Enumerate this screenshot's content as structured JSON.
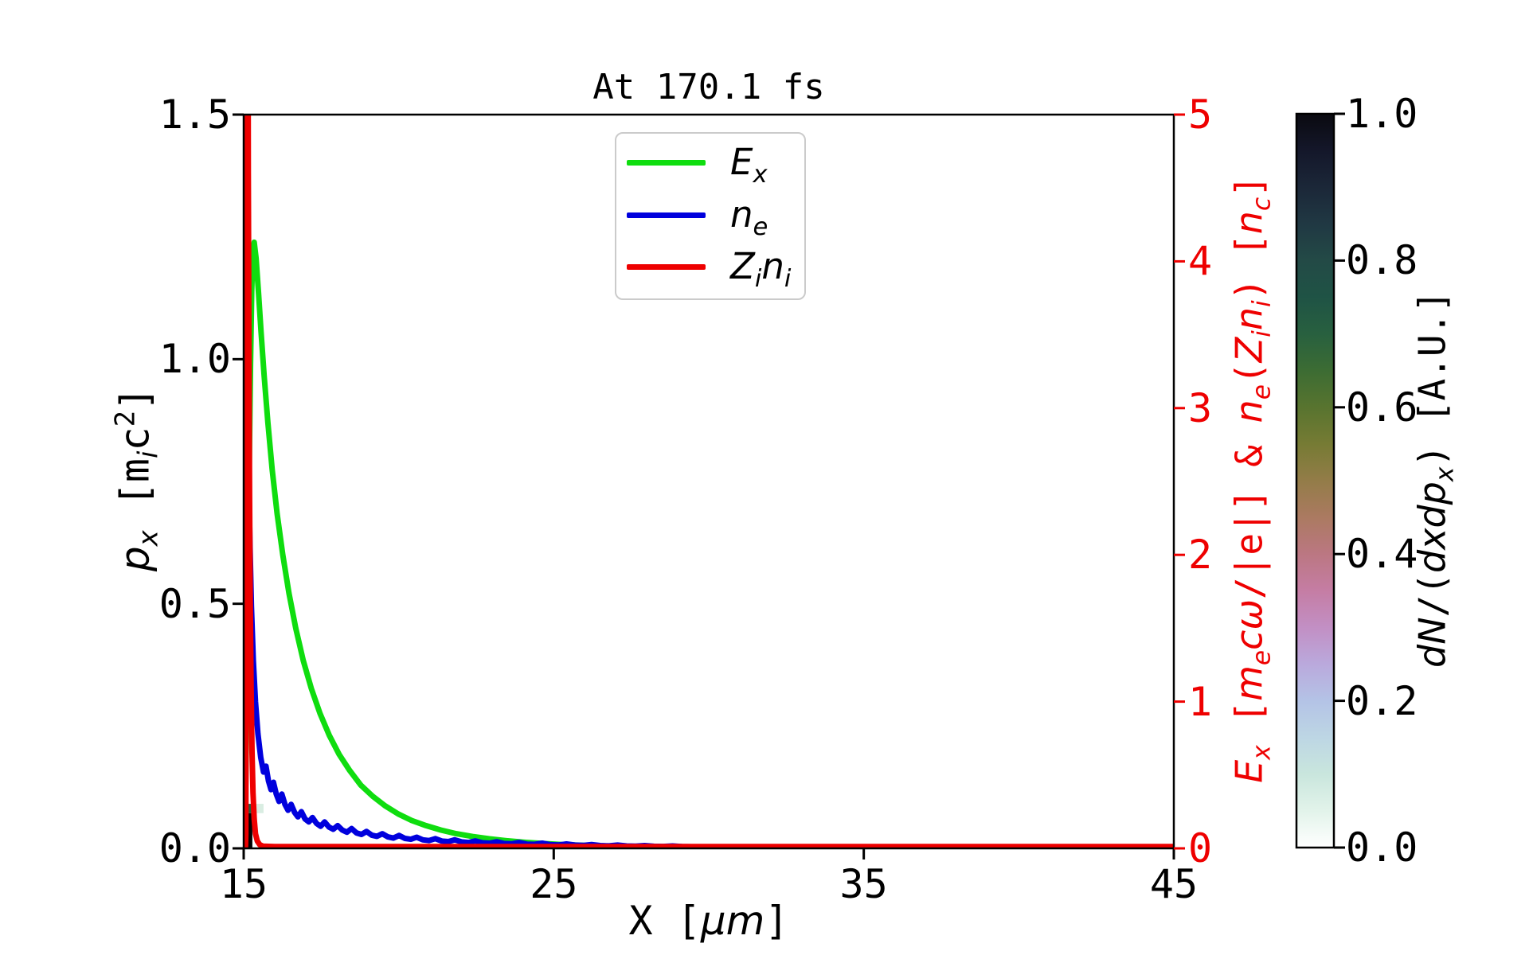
{
  "figure": {
    "title": "At 170.1 fs",
    "background": "#ffffff"
  },
  "axes": {
    "x": {
      "label_html": "X [<i>μm</i>]",
      "label_text": "X [μm]",
      "ticks": [
        "15",
        "25",
        "35",
        "45"
      ],
      "range": [
        15,
        45
      ],
      "color": "#000000"
    },
    "y_left": {
      "label_html": "<i>p<sub>x</sub></i> [m<sub><i>i</i></sub>c<sup>2</sup>]",
      "label_text": "p_x [m_i c^2]",
      "ticks": [
        "0.0",
        "0.5",
        "1.0",
        "1.5"
      ],
      "range": [
        0,
        1.5
      ],
      "color": "#000000"
    },
    "y_right": {
      "label_html": "<i>E<sub>x</sub></i> [<i>m<sub>e</sub>cω</i>/|e|] &amp; <i>n<sub>e</sub></i>(<i>Z<sub>i</sub>n<sub>i</sub></i>) [<i>n<sub>c</sub></i>]",
      "label_text": "E_x [m_e cω/|e|] & n_e(Z_i n_i) [n_c]",
      "ticks": [
        "0",
        "1",
        "2",
        "3",
        "4",
        "5"
      ],
      "range": [
        0,
        5
      ],
      "color": "#ee0000"
    }
  },
  "colorbar": {
    "label_html": "<i>dN</i>/(<i>dxdp<sub>x</sub></i>) [A.U.]",
    "label_text": "dN/(dxdp_x) [A.U.]",
    "ticks": [
      "0.0",
      "0.2",
      "0.4",
      "0.6",
      "0.8",
      "1.0"
    ],
    "range": [
      0,
      1
    ],
    "colormap": "cubehelix_r",
    "stops": [
      [
        0.0,
        "#ffffff"
      ],
      [
        0.05,
        "#e2f3ea"
      ],
      [
        0.1,
        "#c9e6dd"
      ],
      [
        0.15,
        "#bdd6e4"
      ],
      [
        0.2,
        "#b4c3e6"
      ],
      [
        0.25,
        "#baa9dc"
      ],
      [
        0.3,
        "#c28fc4"
      ],
      [
        0.35,
        "#c57da4"
      ],
      [
        0.4,
        "#bb7782"
      ],
      [
        0.45,
        "#ab7a61"
      ],
      [
        0.5,
        "#937c48"
      ],
      [
        0.55,
        "#767b34"
      ],
      [
        0.6,
        "#58742f"
      ],
      [
        0.65,
        "#3c6c33"
      ],
      [
        0.7,
        "#28603f"
      ],
      [
        0.75,
        "#1f5345"
      ],
      [
        0.8,
        "#234a46"
      ],
      [
        0.85,
        "#203843"
      ],
      [
        0.9,
        "#1b2738"
      ],
      [
        0.95,
        "#14172a"
      ],
      [
        1.0,
        "#0a0a10"
      ]
    ]
  },
  "legend": {
    "items": [
      {
        "label_html": "<i>E<sub>x</sub></i>",
        "label_text": "E_x",
        "color": "#0fdd0f"
      },
      {
        "label_html": "<i>n<sub>e</sub></i>",
        "label_text": "n_e",
        "color": "#0000dd"
      },
      {
        "label_html": "<i>Z<sub>i</sub>n<sub>i</sub></i>",
        "label_text": "Z_i n_i",
        "color": "#ee0000"
      }
    ]
  },
  "chart_data": {
    "type": "line",
    "title": "At 170.1 fs",
    "xlabel": "X [μm]",
    "xlim": [
      15,
      45
    ],
    "xticks": [
      15,
      25,
      35,
      45
    ],
    "ylabel_left": "p_x [m_i c^2]",
    "ylim_left": [
      0,
      1.5
    ],
    "ylabel_right": "E_x [m_e cω/|e|] & n_e(Z_i n_i) [n_c]",
    "ylim_right": [
      0,
      5
    ],
    "grid": false,
    "legend_position": "upper center inside",
    "series": [
      {
        "name": "E_x",
        "axis": "right",
        "color": "#0fdd0f",
        "width": 7,
        "points": [
          [
            15.0,
            0.02
          ],
          [
            15.06,
            0.35
          ],
          [
            15.1,
            1.0
          ],
          [
            15.14,
            1.8
          ],
          [
            15.18,
            2.6
          ],
          [
            15.22,
            3.3
          ],
          [
            15.26,
            3.8
          ],
          [
            15.3,
            4.08
          ],
          [
            15.34,
            4.13
          ],
          [
            15.4,
            4.02
          ],
          [
            15.48,
            3.78
          ],
          [
            15.56,
            3.52
          ],
          [
            15.66,
            3.22
          ],
          [
            15.78,
            2.9
          ],
          [
            15.92,
            2.58
          ],
          [
            16.08,
            2.28
          ],
          [
            16.26,
            2.0
          ],
          [
            16.46,
            1.74
          ],
          [
            16.68,
            1.5
          ],
          [
            16.92,
            1.28
          ],
          [
            17.18,
            1.09
          ],
          [
            17.46,
            0.92
          ],
          [
            17.76,
            0.77
          ],
          [
            18.08,
            0.64
          ],
          [
            18.42,
            0.53
          ],
          [
            18.78,
            0.43
          ],
          [
            19.16,
            0.355
          ],
          [
            19.56,
            0.29
          ],
          [
            19.98,
            0.235
          ],
          [
            20.42,
            0.19
          ],
          [
            20.88,
            0.155
          ],
          [
            21.36,
            0.125
          ],
          [
            21.86,
            0.1
          ],
          [
            22.38,
            0.081
          ],
          [
            22.92,
            0.065
          ],
          [
            23.48,
            0.052
          ],
          [
            24.06,
            0.042
          ],
          [
            24.66,
            0.033
          ],
          [
            25.28,
            0.026
          ],
          [
            25.92,
            0.021
          ],
          [
            26.58,
            0.016
          ],
          [
            27.26,
            0.013
          ],
          [
            27.96,
            0.01
          ],
          [
            28.7,
            0.008
          ],
          [
            29.4,
            0.006
          ],
          [
            30.2,
            0.005
          ],
          [
            31,
            0.004
          ],
          [
            32,
            0.003
          ],
          [
            34,
            0.002
          ],
          [
            36,
            0.0015
          ],
          [
            40,
            0.001
          ],
          [
            45,
            0.0008
          ]
        ]
      },
      {
        "name": "n_e",
        "axis": "right",
        "color": "#0000dd",
        "width": 7,
        "points": [
          [
            15.0,
            0.0
          ],
          [
            15.02,
            0.9
          ],
          [
            15.04,
            2.0
          ],
          [
            15.06,
            2.9
          ],
          [
            15.09,
            3.3
          ],
          [
            15.12,
            3.1
          ],
          [
            15.16,
            2.6
          ],
          [
            15.2,
            2.1
          ],
          [
            15.25,
            1.65
          ],
          [
            15.31,
            1.28
          ],
          [
            15.38,
            1.0
          ],
          [
            15.46,
            0.78
          ],
          [
            15.55,
            0.62
          ],
          [
            15.64,
            0.52
          ],
          [
            15.72,
            0.56
          ],
          [
            15.8,
            0.46
          ],
          [
            15.88,
            0.4
          ],
          [
            15.96,
            0.45
          ],
          [
            16.05,
            0.37
          ],
          [
            16.14,
            0.32
          ],
          [
            16.23,
            0.37
          ],
          [
            16.33,
            0.3
          ],
          [
            16.43,
            0.26
          ],
          [
            16.53,
            0.3
          ],
          [
            16.64,
            0.245
          ],
          [
            16.75,
            0.215
          ],
          [
            16.86,
            0.25
          ],
          [
            16.98,
            0.2
          ],
          [
            17.1,
            0.18
          ],
          [
            17.22,
            0.21
          ],
          [
            17.35,
            0.17
          ],
          [
            17.48,
            0.15
          ],
          [
            17.61,
            0.18
          ],
          [
            17.75,
            0.145
          ],
          [
            17.89,
            0.13
          ],
          [
            18.03,
            0.155
          ],
          [
            18.18,
            0.125
          ],
          [
            18.33,
            0.11
          ],
          [
            18.48,
            0.135
          ],
          [
            18.64,
            0.105
          ],
          [
            18.8,
            0.095
          ],
          [
            18.96,
            0.115
          ],
          [
            19.13,
            0.09
          ],
          [
            19.3,
            0.082
          ],
          [
            19.47,
            0.1
          ],
          [
            19.65,
            0.078
          ],
          [
            19.83,
            0.07
          ],
          [
            20.01,
            0.088
          ],
          [
            20.2,
            0.068
          ],
          [
            20.39,
            0.062
          ],
          [
            20.58,
            0.076
          ],
          [
            20.78,
            0.058
          ],
          [
            20.98,
            0.053
          ],
          [
            21.18,
            0.066
          ],
          [
            21.39,
            0.05
          ],
          [
            21.6,
            0.046
          ],
          [
            21.81,
            0.058
          ],
          [
            22.03,
            0.044
          ],
          [
            22.25,
            0.04
          ],
          [
            22.47,
            0.051
          ],
          [
            22.7,
            0.038
          ],
          [
            22.93,
            0.035
          ],
          [
            23.16,
            0.045
          ],
          [
            23.4,
            0.033
          ],
          [
            23.64,
            0.031
          ],
          [
            23.88,
            0.04
          ],
          [
            24.13,
            0.029
          ],
          [
            24.38,
            0.027
          ],
          [
            24.63,
            0.035
          ],
          [
            24.89,
            0.025
          ],
          [
            25.15,
            0.023
          ],
          [
            25.41,
            0.03
          ],
          [
            25.68,
            0.022
          ],
          [
            25.95,
            0.02
          ],
          [
            26.22,
            0.026
          ],
          [
            26.5,
            0.019
          ],
          [
            26.78,
            0.017
          ],
          [
            27.06,
            0.022
          ],
          [
            27.35,
            0.016
          ],
          [
            27.64,
            0.015
          ],
          [
            27.93,
            0.019
          ],
          [
            28.23,
            0.014
          ],
          [
            28.53,
            0.013
          ],
          [
            28.83,
            0.016
          ],
          [
            29.14,
            0.012
          ],
          [
            29.45,
            0.011
          ],
          [
            30,
            0.01
          ],
          [
            31,
            0.008
          ],
          [
            32,
            0.007
          ],
          [
            34,
            0.006
          ],
          [
            36,
            0.005
          ],
          [
            40,
            0.004
          ],
          [
            45,
            0.0035
          ]
        ]
      },
      {
        "name": "Z_i n_i",
        "axis": "right",
        "color": "#ee0000",
        "width": 7,
        "points": [
          [
            15.0,
            0.012
          ],
          [
            15.06,
            0.012
          ],
          [
            15.07,
            0.1
          ],
          [
            15.08,
            1.5
          ],
          [
            15.09,
            5.6
          ],
          [
            15.14,
            5.6
          ],
          [
            15.15,
            4.6
          ],
          [
            15.17,
            3.4
          ],
          [
            15.19,
            2.4
          ],
          [
            15.21,
            1.7
          ],
          [
            15.24,
            1.1
          ],
          [
            15.27,
            0.65
          ],
          [
            15.3,
            0.38
          ],
          [
            15.34,
            0.2
          ],
          [
            15.38,
            0.1
          ],
          [
            15.44,
            0.05
          ],
          [
            15.52,
            0.025
          ],
          [
            15.62,
            0.015
          ],
          [
            16,
            0.012
          ],
          [
            20,
            0.012
          ],
          [
            25,
            0.012
          ],
          [
            30,
            0.012
          ],
          [
            35,
            0.012
          ],
          [
            40,
            0.012
          ],
          [
            45,
            0.012
          ]
        ]
      }
    ],
    "histogram_cells": [
      {
        "x": [
          15.03,
          15.28
        ],
        "px": [
          0.0,
          0.072
        ],
        "value": 1.0,
        "color": "#000000"
      },
      {
        "x": [
          15.03,
          15.28
        ],
        "px": [
          0.072,
          0.091
        ],
        "value": 0.8,
        "color": "#2b5c3e"
      },
      {
        "x": [
          15.28,
          15.64
        ],
        "px": [
          0.072,
          0.091
        ],
        "value": 0.1,
        "color": "#d9ede2"
      }
    ]
  }
}
